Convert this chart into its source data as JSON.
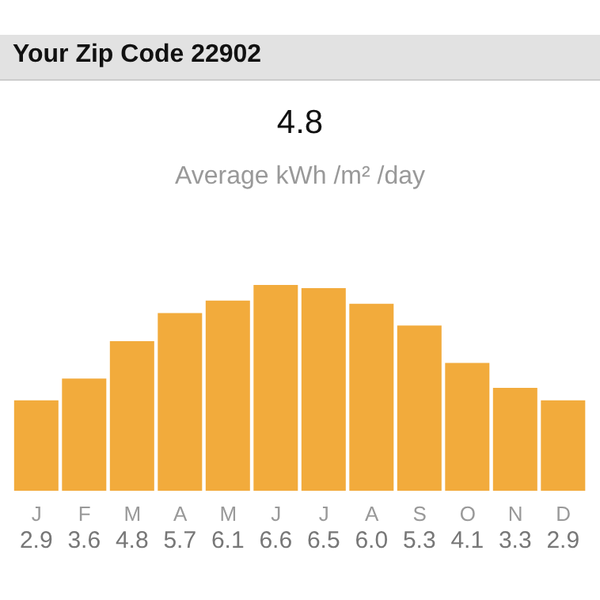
{
  "chart_data": {
    "type": "bar",
    "title": "Your Zip Code 22902",
    "subtitle": "Average kWh /m² /day",
    "annotations": [
      "4.8"
    ],
    "categories": [
      "J",
      "F",
      "M",
      "A",
      "M",
      "J",
      "J",
      "A",
      "S",
      "O",
      "N",
      "D"
    ],
    "values": [
      2.9,
      3.6,
      4.8,
      5.7,
      6.1,
      6.6,
      6.5,
      6.0,
      5.3,
      4.1,
      3.3,
      2.9
    ],
    "color": "#f2ab3c",
    "value_labels": [
      "2.9",
      "3.6",
      "4.8",
      "5.7",
      "6.1",
      "6.6",
      "6.5",
      "6.0",
      "5.3",
      "4.1",
      "3.3",
      "2.9"
    ],
    "grid": false,
    "legend": false
  }
}
